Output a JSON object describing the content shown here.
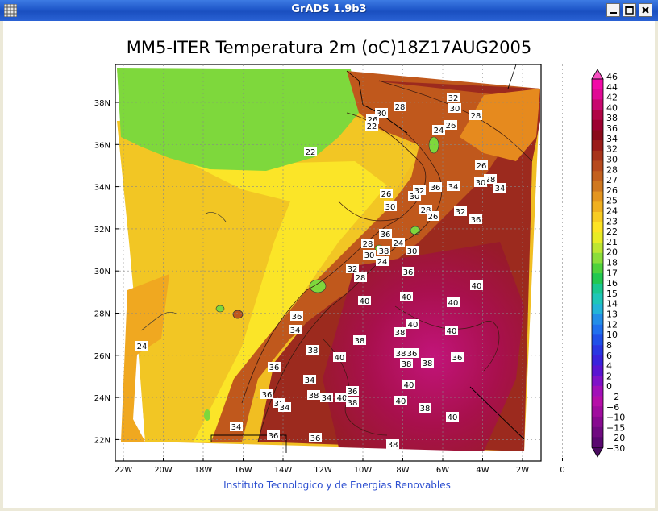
{
  "window": {
    "title": "GrADS 1.9b3"
  },
  "plot": {
    "title": "MM5-ITER Temperatura 2m (oC)18Z17AUG2005",
    "footer": "Instituto Tecnologico y de Energias Renovables",
    "lat_labels": [
      "38N",
      "36N",
      "34N",
      "32N",
      "30N",
      "28N",
      "26N",
      "24N",
      "22N"
    ],
    "lon_labels": [
      "22W",
      "20W",
      "18W",
      "16W",
      "14W",
      "12W",
      "10W",
      "8W",
      "6W",
      "4W",
      "2W",
      "0"
    ]
  },
  "colorbar": {
    "labels": [
      "46",
      "44",
      "42",
      "40",
      "38",
      "36",
      "34",
      "32",
      "30",
      "28",
      "27",
      "26",
      "25",
      "24",
      "23",
      "22",
      "21",
      "20",
      "18",
      "17",
      "16",
      "15",
      "14",
      "13",
      "12",
      "10",
      "8",
      "6",
      "4",
      "2",
      "0",
      "−2",
      "−6",
      "−10",
      "−15",
      "−20",
      "−30"
    ],
    "colors": [
      "#f20aa8",
      "#e00a95",
      "#c8086f",
      "#b00545",
      "#9c0030",
      "#8a0a1a",
      "#9a1c18",
      "#a8341a",
      "#b74a1d",
      "#c3601e",
      "#d0781f",
      "#e4951f",
      "#f0b020",
      "#f8cc22",
      "#fde424",
      "#e8ec26",
      "#bde632",
      "#8bde3a",
      "#4fd23c",
      "#22c850",
      "#19c88f",
      "#1ec6b8",
      "#23b4d8",
      "#238ee8",
      "#2070ee",
      "#2050e8",
      "#2a36e2",
      "#3a22dc",
      "#5a14d2",
      "#8012c8",
      "#a210b8",
      "#b60ea8",
      "#a00c9e",
      "#880a90",
      "#700a80",
      "#5a0870"
    ]
  },
  "contour_labels": [
    {
      "t": "28"
    },
    {
      "t": "30"
    },
    {
      "t": "26"
    },
    {
      "t": "22"
    },
    {
      "t": "32"
    },
    {
      "t": "30"
    },
    {
      "t": "28"
    },
    {
      "t": "24"
    },
    {
      "t": "26"
    },
    {
      "t": "22"
    },
    {
      "t": "26"
    },
    {
      "t": "28"
    },
    {
      "t": "30"
    },
    {
      "t": "34"
    },
    {
      "t": "26"
    },
    {
      "t": "30"
    },
    {
      "t": "32"
    },
    {
      "t": "36"
    },
    {
      "t": "34"
    },
    {
      "t": "30"
    },
    {
      "t": "28"
    },
    {
      "t": "26"
    },
    {
      "t": "32"
    },
    {
      "t": "36"
    },
    {
      "t": "36"
    },
    {
      "t": "28"
    },
    {
      "t": "24"
    },
    {
      "t": "30"
    },
    {
      "t": "38"
    },
    {
      "t": "30"
    },
    {
      "t": "24"
    },
    {
      "t": "32"
    },
    {
      "t": "28"
    },
    {
      "t": "36"
    },
    {
      "t": "40"
    },
    {
      "t": "40"
    },
    {
      "t": "40"
    },
    {
      "t": "40"
    },
    {
      "t": "40"
    },
    {
      "t": "38"
    },
    {
      "t": "34"
    },
    {
      "t": "38"
    },
    {
      "t": "38"
    },
    {
      "t": "40"
    },
    {
      "t": "40"
    },
    {
      "t": "24"
    },
    {
      "t": "36"
    },
    {
      "t": "38"
    },
    {
      "t": "36"
    },
    {
      "t": "38"
    },
    {
      "t": "34"
    },
    {
      "t": "38"
    },
    {
      "t": "36"
    },
    {
      "t": "36"
    },
    {
      "t": "40"
    },
    {
      "t": "36"
    },
    {
      "t": "36"
    },
    {
      "t": "34"
    },
    {
      "t": "38"
    },
    {
      "t": "34"
    },
    {
      "t": "40"
    },
    {
      "t": "36"
    },
    {
      "t": "38"
    },
    {
      "t": "40"
    },
    {
      "t": "38"
    },
    {
      "t": "40"
    },
    {
      "t": "34"
    },
    {
      "t": "36"
    },
    {
      "t": "36"
    },
    {
      "t": "38"
    }
  ]
}
